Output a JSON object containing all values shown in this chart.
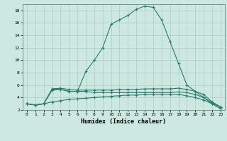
{
  "title": "",
  "xlabel": "Humidex (Indice chaleur)",
  "line_color": "#2a7d6e",
  "background_color": "#cce8e0",
  "grid_color": "#aaccC4",
  "xlim": [
    -0.5,
    23.5
  ],
  "ylim": [
    2,
    19
  ],
  "xticks": [
    0,
    1,
    2,
    3,
    4,
    5,
    6,
    7,
    8,
    9,
    10,
    11,
    12,
    13,
    14,
    15,
    16,
    17,
    18,
    19,
    20,
    21,
    22,
    23
  ],
  "yticks": [
    2,
    4,
    6,
    8,
    10,
    12,
    14,
    16,
    18
  ],
  "lines": [
    {
      "x": [
        0,
        1,
        2,
        3,
        4,
        5,
        6,
        7,
        8,
        9,
        10,
        11,
        12,
        13,
        14,
        15,
        16,
        17,
        18,
        19,
        20,
        21,
        22,
        23
      ],
      "y": [
        3.0,
        2.8,
        3.0,
        3.3,
        3.5,
        3.7,
        3.8,
        3.9,
        4.0,
        4.1,
        4.2,
        4.3,
        4.4,
        4.4,
        4.5,
        4.5,
        4.5,
        4.5,
        4.5,
        4.3,
        4.0,
        3.6,
        3.0,
        2.5
      ]
    },
    {
      "x": [
        0,
        1,
        2,
        3,
        4,
        5,
        6,
        7,
        8,
        9,
        10,
        11,
        12,
        13,
        14,
        15,
        16,
        17,
        18,
        19,
        20,
        21,
        22,
        23
      ],
      "y": [
        3.0,
        2.8,
        3.0,
        5.2,
        5.3,
        5.0,
        5.0,
        5.0,
        4.8,
        4.8,
        4.8,
        4.8,
        4.8,
        4.8,
        4.8,
        4.8,
        4.8,
        4.8,
        4.9,
        4.8,
        4.5,
        4.0,
        3.2,
        2.5
      ]
    },
    {
      "x": [
        0,
        1,
        2,
        3,
        4,
        5,
        6,
        7,
        8,
        9,
        10,
        11,
        12,
        13,
        14,
        15,
        16,
        17,
        18,
        19,
        20,
        21,
        22,
        23
      ],
      "y": [
        3.0,
        2.8,
        3.0,
        5.4,
        5.5,
        5.3,
        5.2,
        5.2,
        5.2,
        5.2,
        5.2,
        5.3,
        5.3,
        5.3,
        5.4,
        5.4,
        5.4,
        5.4,
        5.5,
        5.3,
        5.0,
        4.5,
        3.3,
        2.5
      ]
    },
    {
      "x": [
        0,
        1,
        2,
        3,
        4,
        5,
        6,
        7,
        8,
        9,
        10,
        11,
        12,
        13,
        14,
        15,
        16,
        17,
        18,
        19,
        20,
        21,
        22,
        23
      ],
      "y": [
        3.0,
        2.8,
        3.0,
        5.4,
        5.3,
        5.0,
        5.0,
        8.2,
        10.0,
        12.0,
        15.8,
        16.5,
        17.2,
        18.2,
        18.7,
        18.5,
        16.5,
        13.0,
        9.5,
        6.0,
        5.0,
        4.0,
        3.0,
        2.2
      ]
    }
  ]
}
